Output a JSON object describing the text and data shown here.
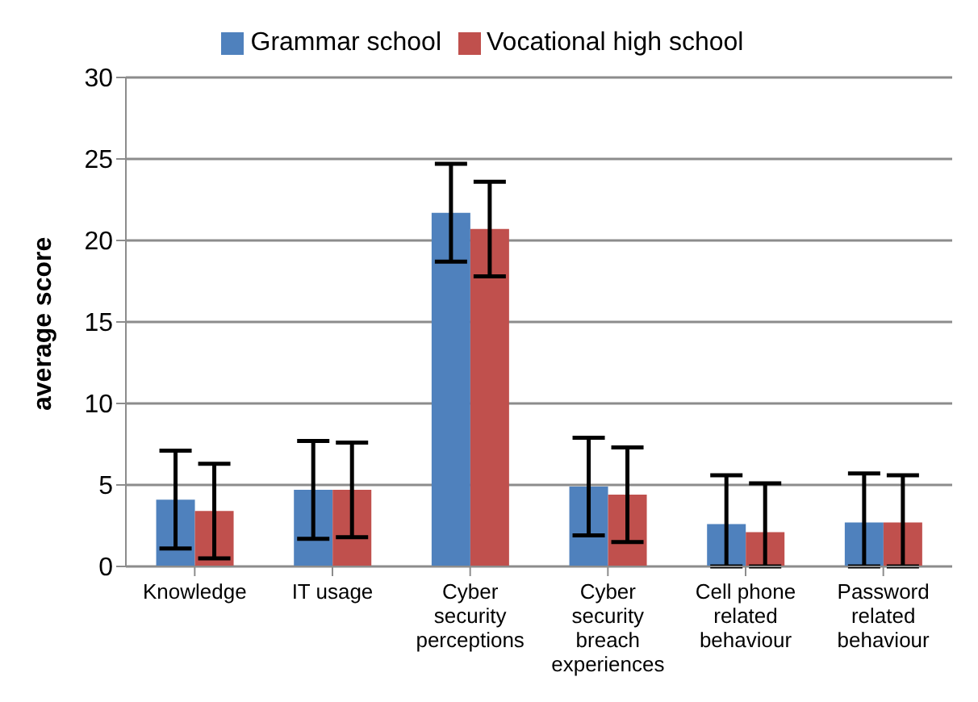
{
  "chart_data": {
    "type": "bar",
    "ylabel": "average score",
    "categories": [
      "Knowledge",
      "IT usage",
      "Cyber security perceptions",
      "Cyber security breach experiences",
      "Cell phone related behaviour",
      "Password related behaviour"
    ],
    "series": [
      {
        "name": "Grammar school",
        "color": "#4f81bd",
        "values": [
          4.1,
          4.7,
          21.7,
          4.9,
          2.6,
          2.7
        ],
        "errors": [
          3,
          3,
          3,
          3,
          [
            0,
            5.6
          ],
          [
            0,
            5.7
          ]
        ]
      },
      {
        "name": "Vocational high school",
        "color": "#c0504d",
        "values": [
          3.4,
          4.7,
          20.7,
          4.4,
          2.1,
          2.7
        ],
        "errors": [
          2.9,
          2.9,
          2.9,
          2.9,
          [
            0,
            5.1
          ],
          [
            0,
            5.6
          ]
        ]
      }
    ],
    "ylim": [
      0,
      30
    ],
    "yticks": [
      0,
      5,
      10,
      15,
      20,
      25,
      30
    ],
    "grid": "y",
    "legend": "top"
  }
}
